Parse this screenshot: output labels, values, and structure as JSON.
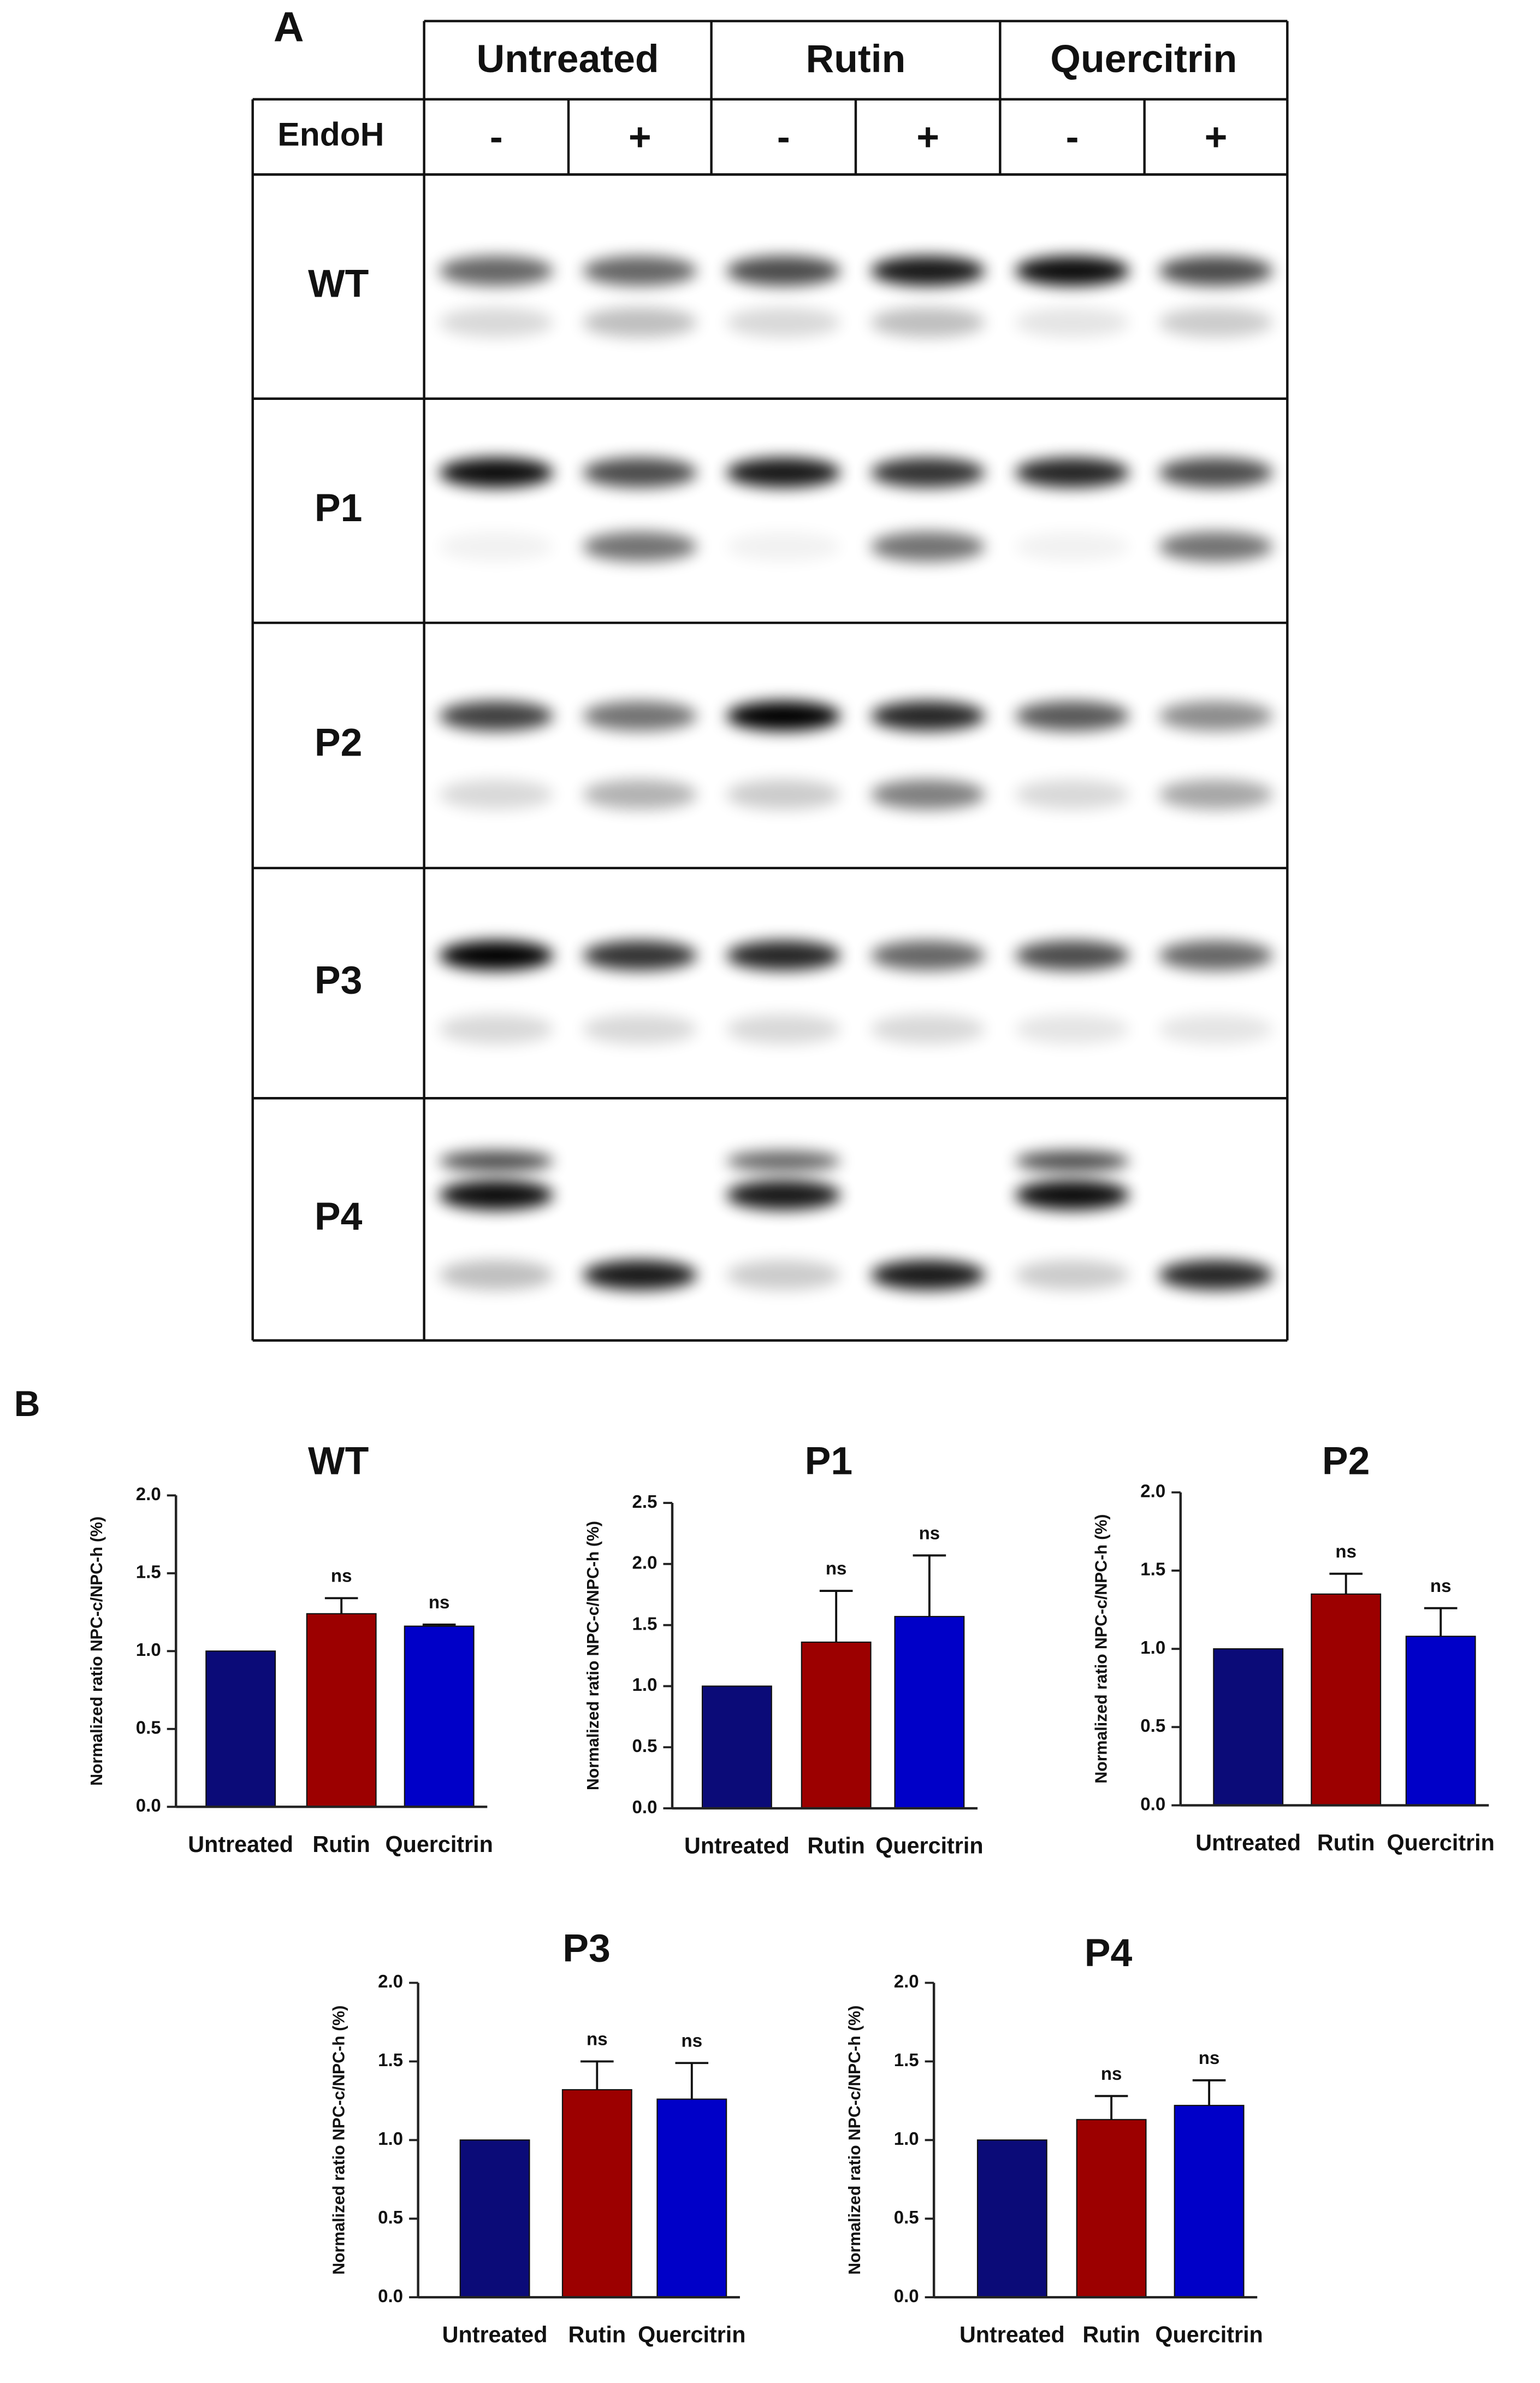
{
  "panel_a": {
    "label": "A",
    "treatments": [
      "Untreated",
      "Rutin",
      "Quercitrin"
    ],
    "enzyme": "EndoH",
    "endo_signs": [
      "-",
      "+",
      "-",
      "+",
      "-",
      "+"
    ],
    "rows": [
      "WT",
      "P1",
      "P2",
      "P3",
      "P4"
    ]
  },
  "panel_b": {
    "label": "B"
  },
  "chart_data": [
    {
      "type": "bar",
      "title": "WT",
      "y_label": "Normalized ratio NPC-c/NPC-h (%)",
      "categories": [
        "Untreated",
        "Rutin",
        "Quercitrin"
      ],
      "values": [
        1.0,
        1.24,
        1.16
      ],
      "errors": [
        null,
        0.1,
        0.01
      ],
      "annotations": [
        null,
        "ns",
        "ns"
      ],
      "colors": [
        "#0b0b78",
        "#9c0000",
        "#0000c8"
      ],
      "ylim": [
        0,
        2
      ],
      "yticks": [
        {
          "value": 0,
          "label": "0.0"
        },
        {
          "value": 0.5,
          "label": "0.5"
        },
        {
          "value": 1,
          "label": "1.0"
        },
        {
          "value": 1.5,
          "label": "1.5"
        },
        {
          "value": 2,
          "label": "2.0"
        }
      ]
    },
    {
      "type": "bar",
      "title": "P1",
      "y_label": "Normalized ratio NPC-c/NPC-h (%)",
      "categories": [
        "Untreated",
        "Rutin",
        "Quercitrin"
      ],
      "values": [
        1.0,
        1.36,
        1.57
      ],
      "errors": [
        null,
        0.42,
        0.5
      ],
      "annotations": [
        null,
        "ns",
        "ns"
      ],
      "colors": [
        "#0b0b78",
        "#9c0000",
        "#0000c8"
      ],
      "ylim": [
        0,
        2.5
      ],
      "yticks": [
        {
          "value": 0,
          "label": "0.0"
        },
        {
          "value": 0.5,
          "label": "0.5"
        },
        {
          "value": 1,
          "label": "1.0"
        },
        {
          "value": 1.5,
          "label": "1.5"
        },
        {
          "value": 2,
          "label": "2.0"
        },
        {
          "value": 2.5,
          "label": "2.5"
        }
      ]
    },
    {
      "type": "bar",
      "title": "P2",
      "y_label": "Normalized ratio NPC-c/NPC-h (%)",
      "categories": [
        "Untreated",
        "Rutin",
        "Quercitrin"
      ],
      "values": [
        1.0,
        1.35,
        1.08
      ],
      "errors": [
        null,
        0.13,
        0.18
      ],
      "annotations": [
        null,
        "ns",
        "ns"
      ],
      "colors": [
        "#0b0b78",
        "#9c0000",
        "#0000c8"
      ],
      "ylim": [
        0,
        2
      ],
      "yticks": [
        {
          "value": 0,
          "label": "0.0"
        },
        {
          "value": 0.5,
          "label": "0.5"
        },
        {
          "value": 1,
          "label": "1.0"
        },
        {
          "value": 1.5,
          "label": "1.5"
        },
        {
          "value": 2,
          "label": "2.0"
        }
      ]
    },
    {
      "type": "bar",
      "title": "P3",
      "y_label": "Normalized ratio NPC-c/NPC-h (%)",
      "categories": [
        "Untreated",
        "Rutin",
        "Quercitrin"
      ],
      "values": [
        1.0,
        1.32,
        1.26
      ],
      "errors": [
        null,
        0.18,
        0.23
      ],
      "annotations": [
        null,
        "ns",
        "ns"
      ],
      "colors": [
        "#0b0b78",
        "#9c0000",
        "#0000c8"
      ],
      "ylim": [
        0,
        2
      ],
      "yticks": [
        {
          "value": 0,
          "label": "0.0"
        },
        {
          "value": 0.5,
          "label": "0.5"
        },
        {
          "value": 1,
          "label": "1.0"
        },
        {
          "value": 1.5,
          "label": "1.5"
        },
        {
          "value": 2,
          "label": "2.0"
        }
      ]
    },
    {
      "type": "bar",
      "title": "P4",
      "y_label": "Normalized ratio NPC-c/NPC-h (%)",
      "categories": [
        "Untreated",
        "Rutin",
        "Quercitrin"
      ],
      "values": [
        1.0,
        1.13,
        1.22
      ],
      "errors": [
        null,
        0.15,
        0.16
      ],
      "annotations": [
        null,
        "ns",
        "ns"
      ],
      "colors": [
        "#0b0b78",
        "#9c0000",
        "#0000c8"
      ],
      "ylim": [
        0,
        2
      ],
      "yticks": [
        {
          "value": 0,
          "label": "0.0"
        },
        {
          "value": 0.5,
          "label": "0.5"
        },
        {
          "value": 1,
          "label": "1.0"
        },
        {
          "value": 1.5,
          "label": "1.5"
        },
        {
          "value": 2,
          "label": "2.0"
        }
      ]
    }
  ]
}
